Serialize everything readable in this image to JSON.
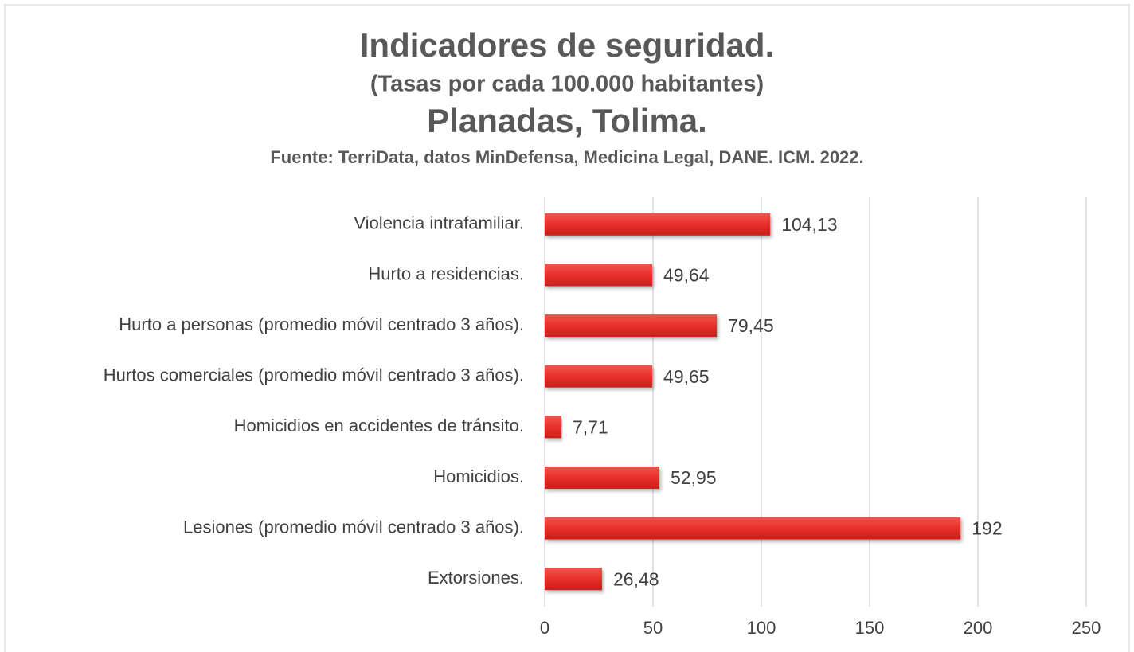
{
  "chart_data": {
    "type": "hbar",
    "title": "Indicadores de seguridad.",
    "subtitle": "(Tasas por cada 100.000 habitantes)",
    "place": "Planadas, Tolima.",
    "source": "Fuente: TerriData, datos MinDefensa, Medicina Legal, DANE. ICM. 2022.",
    "categories": [
      "Violencia intrafamiliar.",
      "Hurto a residencias.",
      "Hurto a personas (promedio móvil centrado 3 años).",
      "Hurtos comerciales (promedio móvil centrado 3 años).",
      "Homicidios en accidentes de tránsito.",
      "Homicidios.",
      "Lesiones (promedio móvil centrado 3 años).",
      "Extorsiones."
    ],
    "values": [
      104.13,
      49.64,
      79.45,
      49.65,
      7.71,
      52.95,
      192,
      26.48
    ],
    "value_labels": [
      "104,13",
      "49,64",
      "79,45",
      "49,65",
      "7,71",
      "52,95",
      "192",
      "26,48"
    ],
    "color": "#e8302a",
    "xlim": [
      0,
      250
    ],
    "xticks": [
      0,
      50,
      100,
      150,
      200,
      250
    ],
    "grid": true
  }
}
